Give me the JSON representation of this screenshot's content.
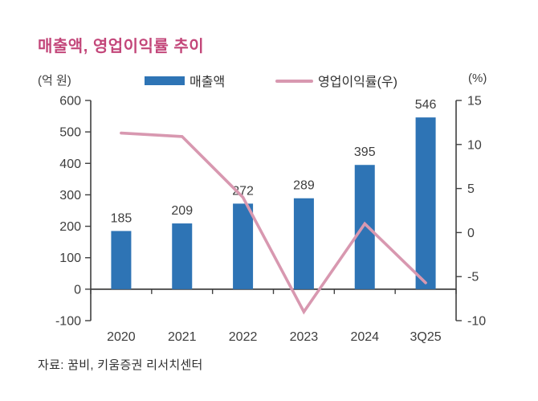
{
  "page_title": "매출액, 영업이익률 추이",
  "header": {
    "left_axis_unit": "(억 원)",
    "right_axis_unit": "(%)",
    "legend": [
      {
        "label": "매출액",
        "marker": "bar-swatch",
        "color": "#2E74B5"
      },
      {
        "label": "영업이익률(우)",
        "marker": "line-swatch",
        "color": "#D898B0"
      }
    ]
  },
  "source_note": "자료: 꿈비, 키움증권 리서치센터",
  "colors": {
    "title": "#C3477A",
    "bar": "#2E74B5",
    "line": "#D898B0",
    "axis": "#404040",
    "text": "#3D3D3D",
    "data_label": "#2E2E2E"
  },
  "chart_data": {
    "type": "bar",
    "subtype": "bar + line combo with dual axes",
    "title": "매출액, 영업이익률 추이",
    "categories": [
      "2020",
      "2021",
      "2022",
      "2023",
      "2024",
      "3Q25"
    ],
    "series": [
      {
        "name": "매출액",
        "type": "bar",
        "axis": "left",
        "color": "#2E74B5",
        "values": [
          185,
          209,
          272,
          289,
          395,
          546
        ],
        "data_labels": [
          "185",
          "209",
          "272",
          "289",
          "395",
          "546"
        ]
      },
      {
        "name": "영업이익률(우)",
        "type": "line",
        "axis": "right",
        "color": "#D898B0",
        "values": [
          11.3,
          10.9,
          4.0,
          -9.0,
          1.0,
          -5.7
        ]
      }
    ],
    "left_axis": {
      "label": "(억 원)",
      "min": -100,
      "max": 600,
      "step": 100,
      "ticks": [
        "600",
        "500",
        "400",
        "300",
        "200",
        "100",
        "0",
        "-100"
      ]
    },
    "right_axis": {
      "label": "(%)",
      "min": -10,
      "max": 15,
      "step": 5,
      "ticks": [
        "15",
        "10",
        "5",
        "0",
        "-5",
        "-10"
      ]
    },
    "grid": false,
    "legend_position": "top",
    "source": "자료: 꿈비, 키움증권 리서치센터"
  }
}
